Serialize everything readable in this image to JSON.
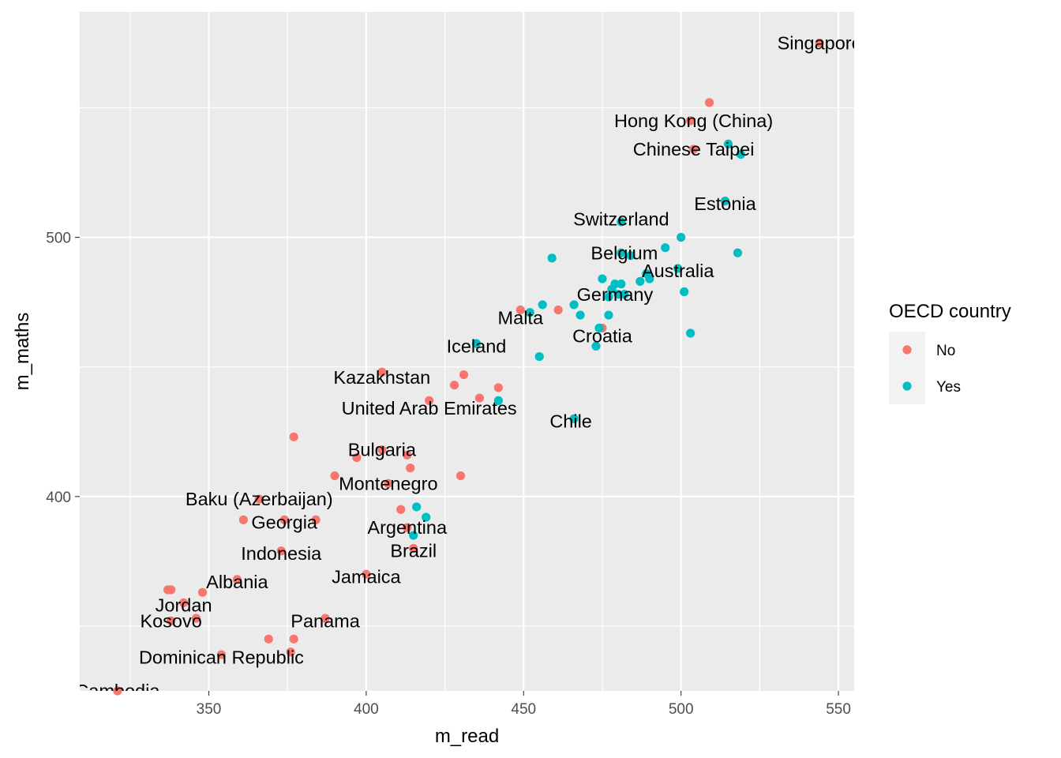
{
  "chart_data": {
    "type": "scatter",
    "xlabel": "m_read",
    "ylabel": "m_maths",
    "xlim": [
      309,
      555
    ],
    "ylim": [
      325,
      587
    ],
    "x_ticks": [
      350,
      400,
      450,
      500,
      550
    ],
    "y_ticks": [
      400,
      500
    ],
    "grid": true,
    "legend": {
      "title": "OECD country",
      "position": "right",
      "entries": [
        {
          "name": "No",
          "color": "#F8766D"
        },
        {
          "name": "Yes",
          "color": "#00BFC4"
        }
      ]
    },
    "series": [
      {
        "name": "No",
        "color": "#F8766D",
        "points": [
          {
            "x": 544,
            "y": 575
          },
          {
            "x": 509,
            "y": 552
          },
          {
            "x": 503,
            "y": 545
          },
          {
            "x": 504,
            "y": 534
          },
          {
            "x": 449,
            "y": 472
          },
          {
            "x": 461,
            "y": 472
          },
          {
            "x": 475,
            "y": 465
          },
          {
            "x": 405,
            "y": 448
          },
          {
            "x": 431,
            "y": 447
          },
          {
            "x": 428,
            "y": 443
          },
          {
            "x": 442,
            "y": 442
          },
          {
            "x": 436,
            "y": 438
          },
          {
            "x": 420,
            "y": 437
          },
          {
            "x": 377,
            "y": 423
          },
          {
            "x": 405,
            "y": 418
          },
          {
            "x": 413,
            "y": 416
          },
          {
            "x": 397,
            "y": 415
          },
          {
            "x": 414,
            "y": 411
          },
          {
            "x": 390,
            "y": 408
          },
          {
            "x": 430,
            "y": 408
          },
          {
            "x": 407,
            "y": 405
          },
          {
            "x": 366,
            "y": 399
          },
          {
            "x": 411,
            "y": 395
          },
          {
            "x": 361,
            "y": 391
          },
          {
            "x": 374,
            "y": 391
          },
          {
            "x": 384,
            "y": 391
          },
          {
            "x": 413,
            "y": 388
          },
          {
            "x": 415,
            "y": 380
          },
          {
            "x": 373,
            "y": 379
          },
          {
            "x": 400,
            "y": 370
          },
          {
            "x": 359,
            "y": 368
          },
          {
            "x": 337,
            "y": 364
          },
          {
            "x": 338,
            "y": 364
          },
          {
            "x": 348,
            "y": 363
          },
          {
            "x": 342,
            "y": 359
          },
          {
            "x": 338,
            "y": 352
          },
          {
            "x": 346,
            "y": 353
          },
          {
            "x": 387,
            "y": 353
          },
          {
            "x": 369,
            "y": 345
          },
          {
            "x": 377,
            "y": 345
          },
          {
            "x": 376,
            "y": 340
          },
          {
            "x": 354,
            "y": 339
          },
          {
            "x": 321,
            "y": 325
          }
        ]
      },
      {
        "name": "Yes",
        "color": "#00BFC4",
        "points": [
          {
            "x": 515,
            "y": 536
          },
          {
            "x": 519,
            "y": 532
          },
          {
            "x": 514,
            "y": 514
          },
          {
            "x": 481,
            "y": 506
          },
          {
            "x": 500,
            "y": 500
          },
          {
            "x": 495,
            "y": 496
          },
          {
            "x": 518,
            "y": 494
          },
          {
            "x": 481,
            "y": 494
          },
          {
            "x": 484,
            "y": 493
          },
          {
            "x": 459,
            "y": 492
          },
          {
            "x": 499,
            "y": 488
          },
          {
            "x": 489,
            "y": 486
          },
          {
            "x": 490,
            "y": 484
          },
          {
            "x": 475,
            "y": 484
          },
          {
            "x": 487,
            "y": 483
          },
          {
            "x": 479,
            "y": 482
          },
          {
            "x": 481,
            "y": 482
          },
          {
            "x": 478,
            "y": 480
          },
          {
            "x": 501,
            "y": 479
          },
          {
            "x": 477,
            "y": 477
          },
          {
            "x": 480,
            "y": 478
          },
          {
            "x": 482,
            "y": 478
          },
          {
            "x": 466,
            "y": 474
          },
          {
            "x": 456,
            "y": 474
          },
          {
            "x": 452,
            "y": 471
          },
          {
            "x": 468,
            "y": 470
          },
          {
            "x": 477,
            "y": 470
          },
          {
            "x": 503,
            "y": 463
          },
          {
            "x": 474,
            "y": 465
          },
          {
            "x": 473,
            "y": 458
          },
          {
            "x": 435,
            "y": 459
          },
          {
            "x": 455,
            "y": 454
          },
          {
            "x": 442,
            "y": 437
          },
          {
            "x": 466,
            "y": 430
          },
          {
            "x": 416,
            "y": 396
          },
          {
            "x": 419,
            "y": 392
          },
          {
            "x": 415,
            "y": 385
          }
        ]
      }
    ],
    "annotations": [
      {
        "text": "Singapore",
        "x": 544,
        "y": 575
      },
      {
        "text": "Hong Kong (China)",
        "x": 504,
        "y": 545
      },
      {
        "text": "Chinese Taipei",
        "x": 504,
        "y": 534
      },
      {
        "text": "Estonia",
        "x": 514,
        "y": 513
      },
      {
        "text": "Switzerland",
        "x": 481,
        "y": 507
      },
      {
        "text": "Belgium",
        "x": 482,
        "y": 494
      },
      {
        "text": "Australia",
        "x": 499,
        "y": 487
      },
      {
        "text": "Germany",
        "x": 479,
        "y": 478
      },
      {
        "text": "Malta",
        "x": 449,
        "y": 469
      },
      {
        "text": "Croatia",
        "x": 475,
        "y": 462
      },
      {
        "text": "Iceland",
        "x": 435,
        "y": 458
      },
      {
        "text": "Kazakhstan",
        "x": 405,
        "y": 446
      },
      {
        "text": "United Arab Emirates",
        "x": 420,
        "y": 434
      },
      {
        "text": "Chile",
        "x": 465,
        "y": 429
      },
      {
        "text": "Bulgaria",
        "x": 405,
        "y": 418
      },
      {
        "text": "Montenegro",
        "x": 407,
        "y": 405
      },
      {
        "text": "Baku (Azerbaijan)",
        "x": 366,
        "y": 399
      },
      {
        "text": "Georgia",
        "x": 374,
        "y": 390
      },
      {
        "text": "Argentina",
        "x": 413,
        "y": 388
      },
      {
        "text": "Brazil",
        "x": 415,
        "y": 379
      },
      {
        "text": "Indonesia",
        "x": 373,
        "y": 378
      },
      {
        "text": "Jamaica",
        "x": 400,
        "y": 369
      },
      {
        "text": "Albania",
        "x": 359,
        "y": 367
      },
      {
        "text": "Jordan",
        "x": 342,
        "y": 358
      },
      {
        "text": "Panama",
        "x": 387,
        "y": 352
      },
      {
        "text": "Kosovo",
        "x": 338,
        "y": 352
      },
      {
        "text": "Dominican Republic",
        "x": 354,
        "y": 338
      },
      {
        "text": "Cambodia",
        "x": 321,
        "y": 325
      }
    ]
  }
}
